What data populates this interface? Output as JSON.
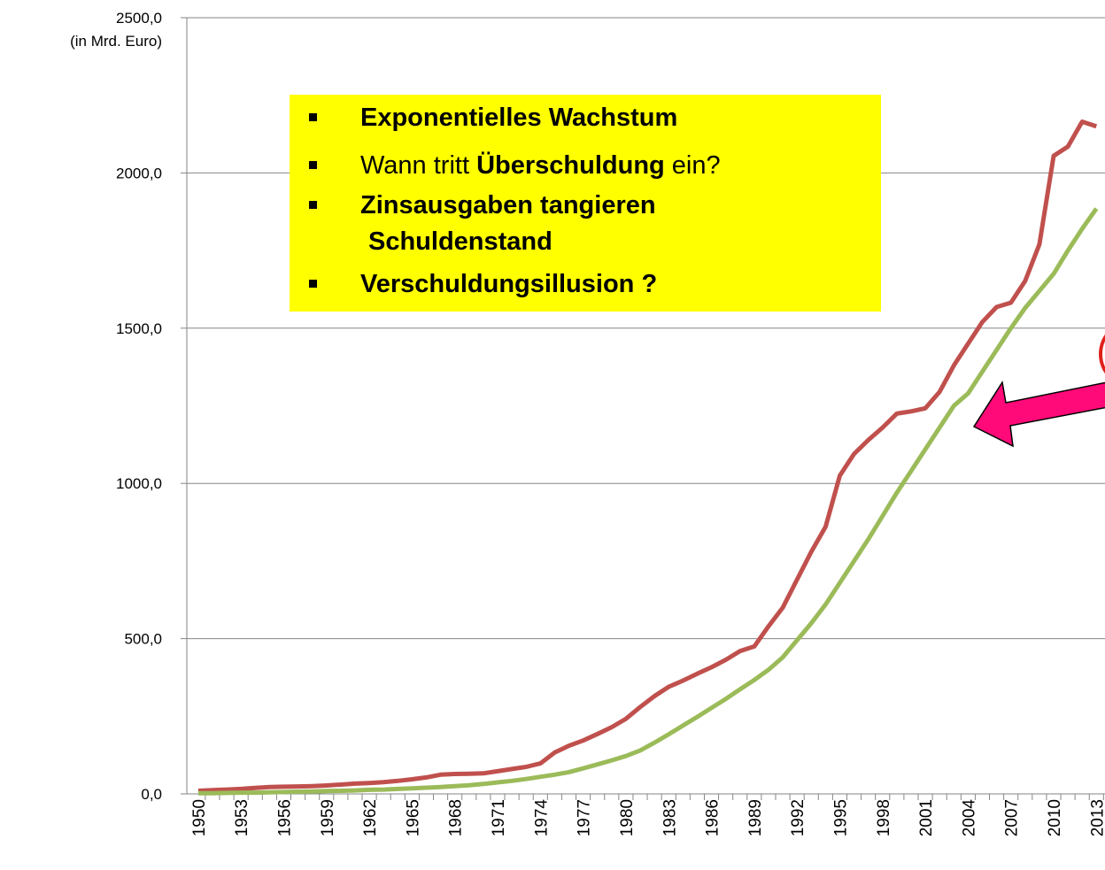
{
  "chart_data": {
    "type": "line",
    "y_axis_label": "(in Mrd. Euro)",
    "x": [
      1950,
      1951,
      1952,
      1953,
      1954,
      1955,
      1956,
      1957,
      1958,
      1959,
      1960,
      1961,
      1962,
      1963,
      1964,
      1965,
      1966,
      1967,
      1968,
      1969,
      1970,
      1971,
      1972,
      1973,
      1974,
      1975,
      1976,
      1977,
      1978,
      1979,
      1980,
      1981,
      1982,
      1983,
      1984,
      1985,
      1986,
      1987,
      1988,
      1989,
      1990,
      1991,
      1992,
      1993,
      1994,
      1995,
      1996,
      1997,
      1998,
      1999,
      2000,
      2001,
      2002,
      2003,
      2004,
      2005,
      2006,
      2007,
      2008,
      2009,
      2010,
      2011,
      2012,
      2013
    ],
    "xlim": [
      1949.2,
      2013.6
    ],
    "xticks": [
      1950,
      1953,
      1956,
      1959,
      1962,
      1965,
      1968,
      1971,
      1974,
      1977,
      1980,
      1983,
      1986,
      1989,
      1992,
      1995,
      1998,
      2001,
      2004,
      2007,
      2010,
      2013
    ],
    "ylim": [
      0,
      2500
    ],
    "yticks": [
      {
        "value": 0,
        "label": "0,0"
      },
      {
        "value": 500,
        "label": "500,0"
      },
      {
        "value": 1000,
        "label": "1000,0"
      },
      {
        "value": 1500,
        "label": "1500,0"
      },
      {
        "value": 2000,
        "label": "2000,0"
      },
      {
        "value": 2500,
        "label": "2500,0"
      }
    ],
    "grid": true,
    "series": [
      {
        "color": "#c0504d",
        "values": [
          10,
          12,
          14,
          16,
          19,
          22,
          23,
          24,
          25,
          27,
          30,
          33,
          35,
          38,
          42,
          47,
          53,
          62,
          64,
          65,
          66,
          73,
          80,
          87,
          98,
          133,
          155,
          172,
          193,
          215,
          242,
          280,
          315,
          345,
          365,
          387,
          408,
          432,
          460,
          475,
          540,
          600,
          690,
          780,
          860,
          1025,
          1095,
          1140,
          1180,
          1225,
          1232,
          1242,
          1295,
          1380,
          1450,
          1520,
          1568,
          1582,
          1652,
          1770,
          2055,
          2085,
          2165,
          2150
        ]
      },
      {
        "color": "#9bbb59",
        "values": [
          2,
          2,
          3,
          4,
          4,
          5,
          6,
          7,
          8,
          9,
          10,
          11,
          13,
          14,
          16,
          18,
          20,
          22,
          25,
          28,
          32,
          37,
          42,
          48,
          55,
          62,
          70,
          82,
          95,
          108,
          122,
          140,
          165,
          192,
          220,
          248,
          277,
          306,
          337,
          367,
          400,
          440,
          495,
          550,
          610,
          680,
          750,
          820,
          895,
          970,
          1040,
          1110,
          1180,
          1250,
          1290,
          1360,
          1430,
          1500,
          1565,
          1620,
          1675,
          1750,
          1820,
          1885
        ]
      }
    ],
    "annotation_items": [
      [
        {
          "text": "Exponentielles Wachstum",
          "bold": true
        }
      ],
      [
        {
          "text": "Wann tritt ",
          "bold": false
        },
        {
          "text": "Überschuldung",
          "bold": true
        },
        {
          "text": " ein?",
          "bold": false
        }
      ],
      [
        {
          "text": "Zinsausgaben tangieren",
          "bold": true
        }
      ],
      [
        {
          "text": "Schuldenstand",
          "bold": true
        }
      ],
      [
        {
          "text": "Verschuldungsillusion ?",
          "bold": true
        }
      ]
    ],
    "annotation_bullets": [
      true,
      true,
      true,
      false,
      true
    ]
  }
}
